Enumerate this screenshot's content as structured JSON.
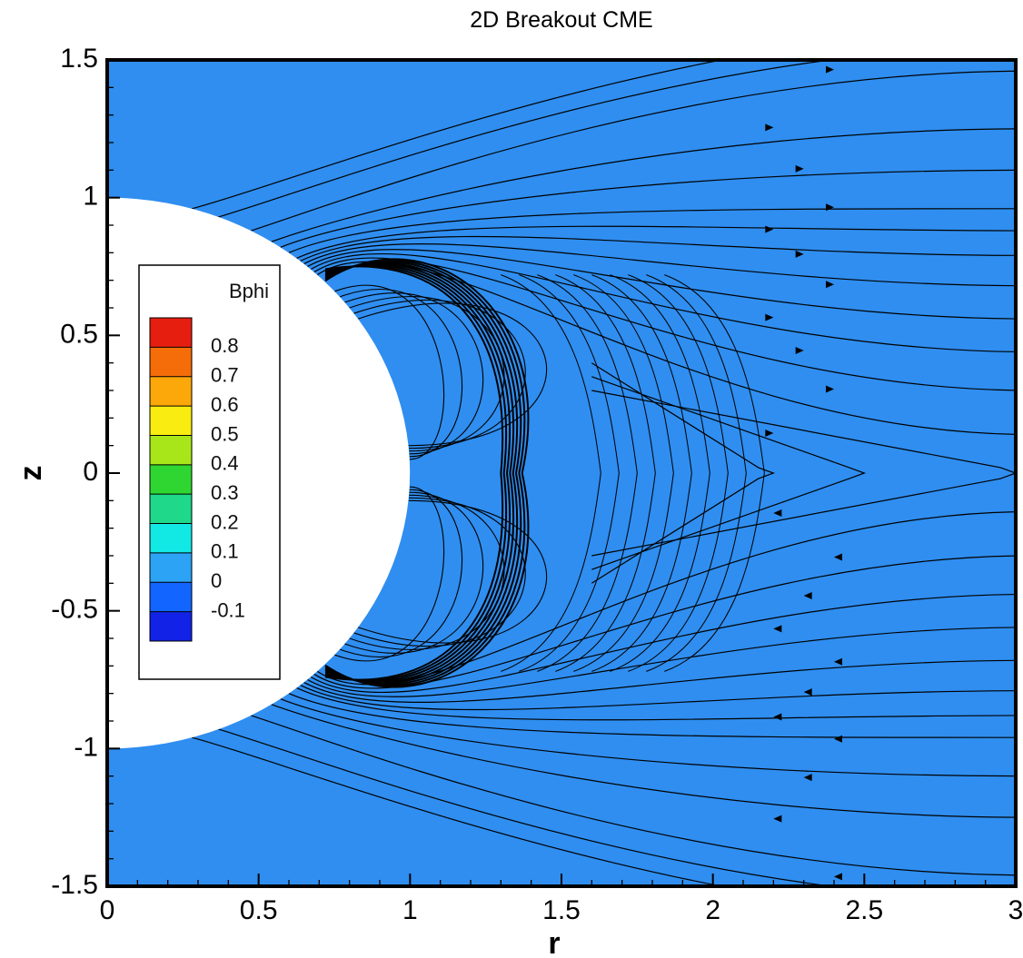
{
  "chart_data": {
    "type": "contour",
    "title": "2D Breakout CME",
    "xlabel": "r",
    "ylabel": "z",
    "xlim": [
      0,
      3
    ],
    "ylim": [
      -1.5,
      1.5
    ],
    "x_ticks": [
      0,
      0.5,
      1,
      1.5,
      2,
      2.5,
      3
    ],
    "x_tick_labels": [
      "0",
      "0.5",
      "1",
      "1.5",
      "2",
      "2.5",
      "3"
    ],
    "y_ticks": [
      -1.5,
      -1,
      -0.5,
      0,
      0.5,
      1,
      1.5
    ],
    "y_tick_labels": [
      "-1.5",
      "-1",
      "-0.5",
      "0",
      "0.5",
      "1",
      "1.5"
    ],
    "background_value_color": "#2f8ef0",
    "inner_boundary_radius": 1,
    "legend": {
      "title": "Bphi",
      "placement": "left",
      "levels": [
        "0.8",
        "0.7",
        "0.6",
        "0.5",
        "0.4",
        "0.3",
        "0.2",
        "0.1",
        "0",
        "-0.1"
      ],
      "level_values": [
        0.8,
        0.7,
        0.6,
        0.5,
        0.4,
        0.3,
        0.2,
        0.1,
        0,
        -0.1
      ],
      "colors": [
        "#e61e10",
        "#f46d08",
        "#fca80a",
        "#f9ec10",
        "#a8e61a",
        "#2fd631",
        "#1fd88a",
        "#12e8e4",
        "#2ca3f5",
        "#1266ff",
        "#1222e6"
      ]
    },
    "streamline_color": "#000000"
  }
}
